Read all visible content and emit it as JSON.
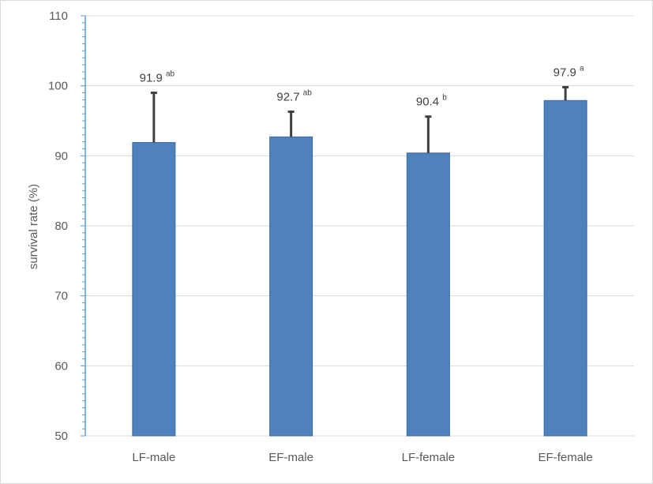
{
  "chart_data": {
    "type": "bar",
    "categories": [
      "LF-male",
      "EF-male",
      "LF-female",
      "EF-female"
    ],
    "values": [
      91.9,
      92.7,
      90.4,
      97.9
    ],
    "error_upper": [
      99.0,
      96.3,
      95.6,
      99.8
    ],
    "data_labels": [
      "91.9",
      "92.7",
      "90.4",
      "97.9"
    ],
    "significance": [
      "ab",
      "ab",
      "b",
      "a"
    ],
    "title": "",
    "xlabel": "",
    "ylabel": "survival rate (%)",
    "ylim": [
      50,
      110
    ],
    "yticks": [
      50,
      60,
      70,
      80,
      90,
      100,
      110
    ],
    "grid": true,
    "legend": "none",
    "colors": {
      "bar": "#4f81bd",
      "bar_edge": "#3a6aa6",
      "error_bar": "#404040",
      "grid": "#d9d9d9",
      "axis": "#5b9bd5"
    }
  }
}
